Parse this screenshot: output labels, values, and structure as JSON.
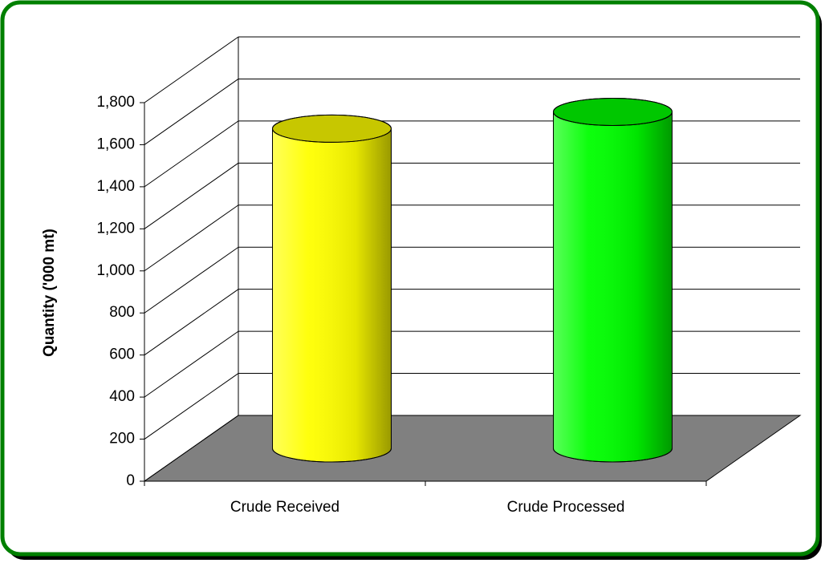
{
  "chart_data": {
    "type": "cylinder",
    "y_axis_label": "Quantity ('000 mt)",
    "categories": [
      "Crude Received",
      "Crude Processed"
    ],
    "values": [
      1520,
      1600
    ],
    "colors": [
      "#ffff00",
      "#00ff00"
    ],
    "ylim": [
      0,
      1800
    ],
    "yticks": [
      0,
      200,
      400,
      600,
      800,
      {
        "value": 1000,
        "label": "1,000"
      },
      {
        "value": 1200,
        "label": "1,200"
      },
      {
        "value": 1400,
        "label": "1,400"
      },
      {
        "value": 1600,
        "label": "1,600"
      },
      {
        "value": 1800,
        "label": "1,800"
      }
    ],
    "grid": true,
    "floor_color": "#808080"
  }
}
